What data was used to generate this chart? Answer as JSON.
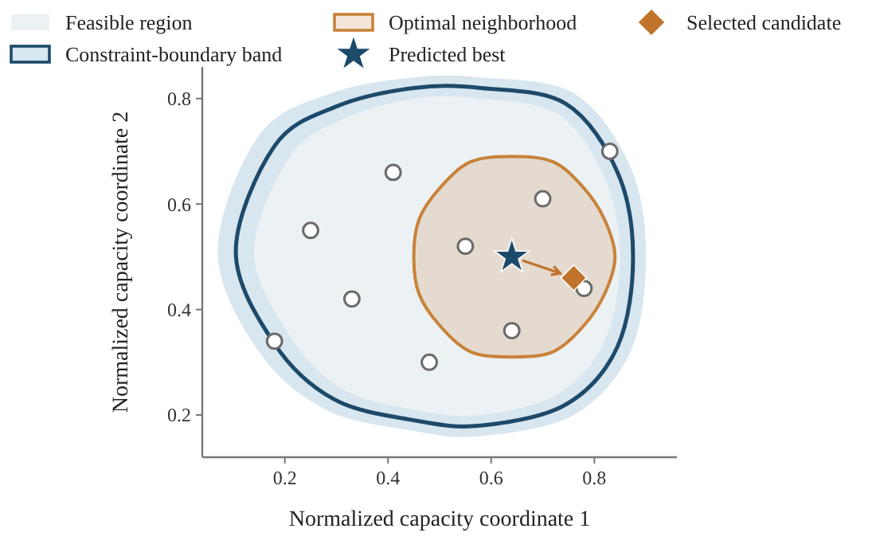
{
  "chart_data": {
    "type": "scatter",
    "xlabel": "Normalized capacity coordinate 1",
    "ylabel": "Normalized capacity coordinate 2",
    "xlim": [
      0.04,
      0.96
    ],
    "ylim": [
      0.12,
      0.86
    ],
    "xticks": [
      0.2,
      0.4,
      0.6,
      0.8
    ],
    "yticks": [
      0.2,
      0.4,
      0.6,
      0.8
    ],
    "grid": false,
    "legend": "top",
    "series": [
      {
        "name": "Feasible region",
        "type": "area",
        "color": "#ecf1f4",
        "x": [
          0.14,
          0.21,
          0.31,
          0.45,
          0.58,
          0.73,
          0.82,
          0.85,
          0.82,
          0.73,
          0.58,
          0.45,
          0.31,
          0.21
        ],
        "values": [
          0.51,
          0.69,
          0.76,
          0.8,
          0.8,
          0.77,
          0.65,
          0.5,
          0.34,
          0.24,
          0.2,
          0.21,
          0.25,
          0.35
        ]
      },
      {
        "name": "Constraint-boundary band",
        "type": "area",
        "color": "#d7e6ef",
        "x": [
          0.07,
          0.15,
          0.29,
          0.45,
          0.58,
          0.76,
          0.87,
          0.9,
          0.87,
          0.76,
          0.58,
          0.45,
          0.28,
          0.15
        ],
        "values": [
          0.51,
          0.73,
          0.81,
          0.84,
          0.84,
          0.81,
          0.67,
          0.5,
          0.32,
          0.2,
          0.16,
          0.17,
          0.21,
          0.32
        ]
      },
      {
        "name": "Optimal neighborhood",
        "type": "area",
        "line_style": "solid",
        "color": "#c8823a",
        "x": [
          0.84,
          0.82,
          0.78,
          0.72,
          0.64,
          0.56,
          0.5,
          0.46,
          0.45,
          0.46,
          0.5,
          0.56,
          0.64,
          0.72,
          0.78,
          0.82
        ],
        "values": [
          0.5,
          0.57,
          0.63,
          0.68,
          0.69,
          0.68,
          0.63,
          0.57,
          0.5,
          0.43,
          0.37,
          0.32,
          0.31,
          0.32,
          0.37,
          0.43
        ]
      },
      {
        "type": "scatter",
        "marker": "circle",
        "color": "#6b6b6b",
        "x": [
          0.18,
          0.25,
          0.33,
          0.41,
          0.48,
          0.55,
          0.64,
          0.7,
          0.78,
          0.83
        ],
        "values": [
          0.34,
          0.55,
          0.42,
          0.66,
          0.3,
          0.52,
          0.36,
          0.61,
          0.44,
          0.7
        ]
      },
      {
        "name": "Predicted best",
        "type": "scatter",
        "marker": "star",
        "color": "#1d4a6a",
        "x": [
          0.64
        ],
        "values": [
          0.5
        ]
      },
      {
        "name": "Selected candidate",
        "type": "scatter",
        "marker": "diamond",
        "color": "#c0732a",
        "x": [
          0.76
        ],
        "values": [
          0.46
        ]
      }
    ]
  }
}
